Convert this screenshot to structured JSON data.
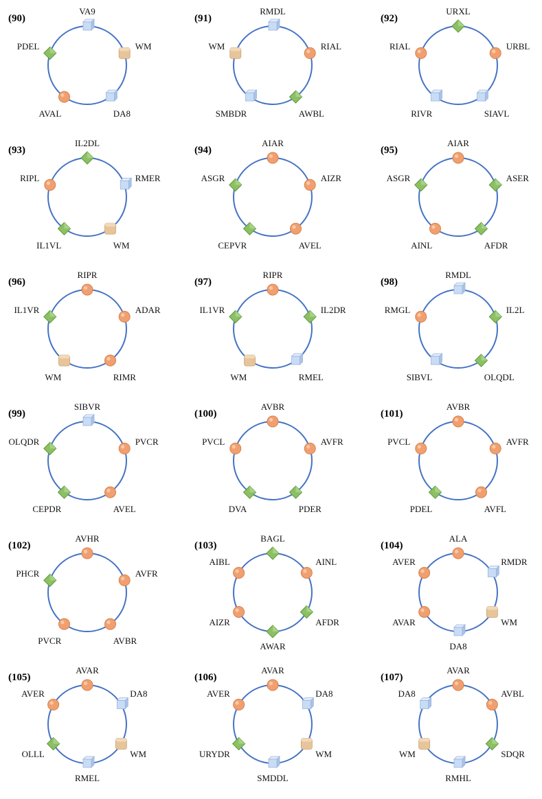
{
  "legend_colors": {
    "circle": "#f0a070",
    "diamond": "#8cc063",
    "cube": "#c9dcf5",
    "cylinder": "#e8c49a",
    "ring": "#4472c4"
  },
  "panels": [
    {
      "label": "(90)",
      "nodes": [
        {
          "name": "VA9",
          "shape": "cube"
        },
        {
          "name": "WM",
          "shape": "cylinder"
        },
        {
          "name": "DA8",
          "shape": "cube"
        },
        {
          "name": "AVAL",
          "shape": "circle"
        },
        {
          "name": "PDEL",
          "shape": "diamond"
        }
      ]
    },
    {
      "label": "(91)",
      "nodes": [
        {
          "name": "RMDL",
          "shape": "cube"
        },
        {
          "name": "RIAL",
          "shape": "circle"
        },
        {
          "name": "AWBL",
          "shape": "diamond"
        },
        {
          "name": "SMBDR",
          "shape": "cube"
        },
        {
          "name": "WM",
          "shape": "cylinder"
        }
      ]
    },
    {
      "label": "(92)",
      "nodes": [
        {
          "name": "URXL",
          "shape": "diamond"
        },
        {
          "name": "URBL",
          "shape": "circle"
        },
        {
          "name": "SIAVL",
          "shape": "cube"
        },
        {
          "name": "RIVR",
          "shape": "cube"
        },
        {
          "name": "RIAL",
          "shape": "circle"
        }
      ]
    },
    {
      "label": "(93)",
      "nodes": [
        {
          "name": "IL2DL",
          "shape": "diamond"
        },
        {
          "name": "RMER",
          "shape": "cube"
        },
        {
          "name": "WM",
          "shape": "cylinder"
        },
        {
          "name": "IL1VL",
          "shape": "diamond"
        },
        {
          "name": "RIPL",
          "shape": "circle"
        }
      ]
    },
    {
      "label": "(94)",
      "nodes": [
        {
          "name": "AIAR",
          "shape": "circle"
        },
        {
          "name": "AIZR",
          "shape": "circle"
        },
        {
          "name": "AVEL",
          "shape": "circle"
        },
        {
          "name": "CEPVR",
          "shape": "diamond"
        },
        {
          "name": "ASGR",
          "shape": "diamond"
        }
      ]
    },
    {
      "label": "(95)",
      "nodes": [
        {
          "name": "AIAR",
          "shape": "circle"
        },
        {
          "name": "ASER",
          "shape": "diamond"
        },
        {
          "name": "AFDR",
          "shape": "diamond"
        },
        {
          "name": "AINL",
          "shape": "circle"
        },
        {
          "name": "ASGR",
          "shape": "diamond"
        }
      ]
    },
    {
      "label": "(96)",
      "nodes": [
        {
          "name": "RIPR",
          "shape": "circle"
        },
        {
          "name": "ADAR",
          "shape": "circle"
        },
        {
          "name": "RIMR",
          "shape": "circle"
        },
        {
          "name": "WM",
          "shape": "cylinder"
        },
        {
          "name": "IL1VR",
          "shape": "diamond"
        }
      ]
    },
    {
      "label": "(97)",
      "nodes": [
        {
          "name": "RIPR",
          "shape": "circle"
        },
        {
          "name": "IL2DR",
          "shape": "diamond"
        },
        {
          "name": "RMEL",
          "shape": "cube"
        },
        {
          "name": "WM",
          "shape": "cylinder"
        },
        {
          "name": "IL1VR",
          "shape": "diamond"
        }
      ]
    },
    {
      "label": "(98)",
      "nodes": [
        {
          "name": "RMDL",
          "shape": "cube"
        },
        {
          "name": "IL2L",
          "shape": "diamond"
        },
        {
          "name": "OLQDL",
          "shape": "diamond"
        },
        {
          "name": "SIBVL",
          "shape": "cube"
        },
        {
          "name": "RMGL",
          "shape": "circle"
        }
      ]
    },
    {
      "label": "(99)",
      "nodes": [
        {
          "name": "SIBVR",
          "shape": "cube"
        },
        {
          "name": "PVCR",
          "shape": "circle"
        },
        {
          "name": "AVEL",
          "shape": "circle"
        },
        {
          "name": "CEPDR",
          "shape": "diamond"
        },
        {
          "name": "OLQDR",
          "shape": "diamond"
        }
      ]
    },
    {
      "label": "(100)",
      "nodes": [
        {
          "name": "AVBR",
          "shape": "circle"
        },
        {
          "name": "AVFR",
          "shape": "circle"
        },
        {
          "name": "PDER",
          "shape": "diamond"
        },
        {
          "name": "DVA",
          "shape": "diamond"
        },
        {
          "name": "PVCL",
          "shape": "circle"
        }
      ]
    },
    {
      "label": "(101)",
      "nodes": [
        {
          "name": "AVBR",
          "shape": "circle"
        },
        {
          "name": "AVFR",
          "shape": "circle"
        },
        {
          "name": "AVFL",
          "shape": "circle"
        },
        {
          "name": "PDEL",
          "shape": "diamond"
        },
        {
          "name": "PVCL",
          "shape": "circle"
        }
      ]
    },
    {
      "label": "(102)",
      "nodes": [
        {
          "name": "AVHR",
          "shape": "circle"
        },
        {
          "name": "AVFR",
          "shape": "circle"
        },
        {
          "name": "AVBR",
          "shape": "circle"
        },
        {
          "name": "PVCR",
          "shape": "circle"
        },
        {
          "name": "PHCR",
          "shape": "diamond"
        }
      ]
    },
    {
      "label": "(103)",
      "nodes": [
        {
          "name": "BAGL",
          "shape": "diamond"
        },
        {
          "name": "AINL",
          "shape": "circle"
        },
        {
          "name": "AFDR",
          "shape": "diamond"
        },
        {
          "name": "AWAR",
          "shape": "diamond"
        },
        {
          "name": "AIZR",
          "shape": "circle"
        },
        {
          "name": "AIBL",
          "shape": "circle"
        }
      ]
    },
    {
      "label": "(104)",
      "nodes": [
        {
          "name": "ALA",
          "shape": "circle"
        },
        {
          "name": "RMDR",
          "shape": "cube"
        },
        {
          "name": "WM",
          "shape": "cylinder"
        },
        {
          "name": "DA8",
          "shape": "cube"
        },
        {
          "name": "AVAR",
          "shape": "circle"
        },
        {
          "name": "AVER",
          "shape": "circle"
        }
      ]
    },
    {
      "label": "(105)",
      "nodes": [
        {
          "name": "AVAR",
          "shape": "circle"
        },
        {
          "name": "DA8",
          "shape": "cube"
        },
        {
          "name": "WM",
          "shape": "cylinder"
        },
        {
          "name": "RMEL",
          "shape": "cube"
        },
        {
          "name": "OLLL",
          "shape": "diamond"
        },
        {
          "name": "AVER",
          "shape": "circle"
        }
      ]
    },
    {
      "label": "(106)",
      "nodes": [
        {
          "name": "AVAR",
          "shape": "circle"
        },
        {
          "name": "DA8",
          "shape": "cube"
        },
        {
          "name": "WM",
          "shape": "cylinder"
        },
        {
          "name": "SMDDL",
          "shape": "cube"
        },
        {
          "name": "URYDR",
          "shape": "diamond"
        },
        {
          "name": "AVER",
          "shape": "circle"
        }
      ]
    },
    {
      "label": "(107)",
      "nodes": [
        {
          "name": "AVAR",
          "shape": "circle"
        },
        {
          "name": "AVBL",
          "shape": "circle"
        },
        {
          "name": "SDQR",
          "shape": "diamond"
        },
        {
          "name": "RMHL",
          "shape": "cube"
        },
        {
          "name": "WM",
          "shape": "cylinder"
        },
        {
          "name": "DA8",
          "shape": "cube"
        }
      ]
    }
  ]
}
